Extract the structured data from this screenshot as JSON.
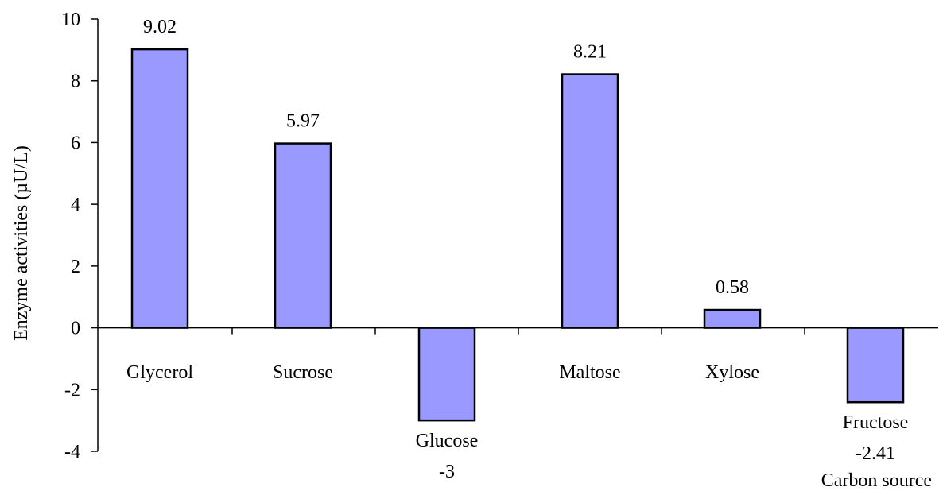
{
  "chart_data": {
    "type": "bar",
    "categories": [
      "Glycerol",
      "Sucrose",
      "Glucose",
      "Maltose",
      "Xylose",
      "Fructose"
    ],
    "values": [
      9.02,
      5.97,
      -3,
      8.21,
      0.58,
      -2.41
    ],
    "data_labels": [
      "9.02",
      "5.97",
      "-3",
      "8.21",
      "0.58",
      "-2.41"
    ],
    "title": "",
    "xlabel": "Carbon source",
    "ylabel": "Enzyme activities (µU/L)",
    "ylim": [
      -4,
      10
    ],
    "yticks": [
      10,
      8,
      6,
      4,
      2,
      0,
      -2,
      -4
    ],
    "grid": false,
    "legend": "none",
    "colors": {
      "bar_fill": "#9999ff",
      "bar_stroke": "#000000",
      "axis": "#000000"
    }
  }
}
